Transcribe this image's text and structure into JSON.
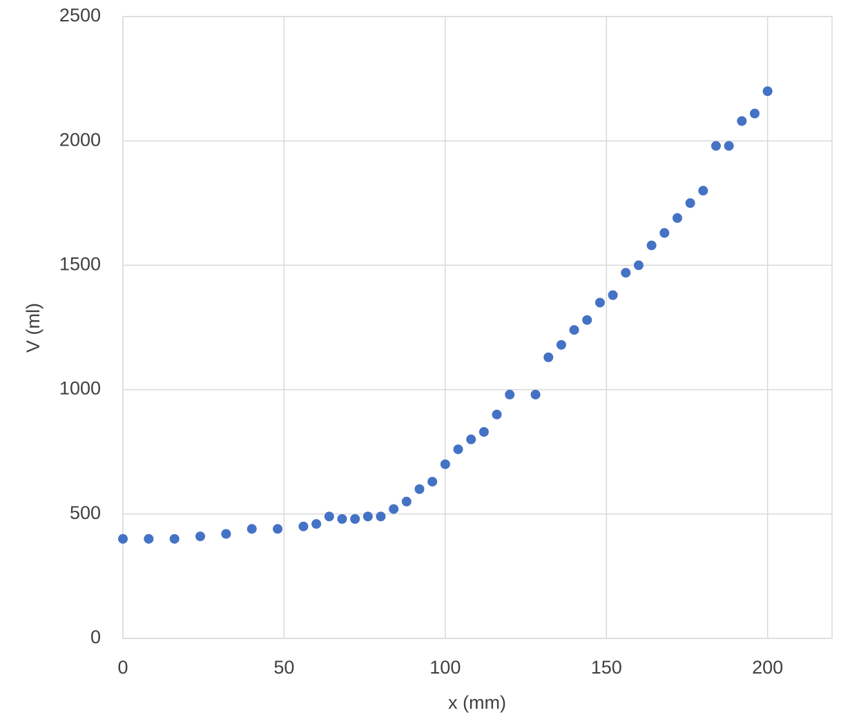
{
  "chart_data": {
    "type": "scatter",
    "x_label": "x (mm)",
    "y_label": "V (ml)",
    "series": [
      {
        "color": "#4472c4",
        "x": [
          0,
          8,
          16,
          24,
          32,
          40,
          48,
          56,
          60,
          64,
          68,
          72,
          76,
          80,
          84,
          88,
          92,
          96,
          100,
          104,
          108,
          112,
          116,
          120,
          128,
          132,
          136,
          140,
          144,
          148,
          152,
          156,
          160,
          164,
          168,
          172,
          176,
          180,
          184,
          188,
          192,
          196,
          200
        ],
        "values": [
          400,
          400,
          400,
          410,
          420,
          440,
          440,
          450,
          460,
          490,
          480,
          480,
          490,
          490,
          520,
          550,
          600,
          630,
          700,
          760,
          800,
          830,
          900,
          980,
          980,
          1130,
          1180,
          1240,
          1280,
          1350,
          1380,
          1470,
          1500,
          1580,
          1630,
          1690,
          1750,
          1800,
          1980,
          1980,
          2080,
          2110,
          2200
        ]
      }
    ],
    "xlim": [
      0,
      220
    ],
    "xticks": [
      0,
      50,
      100,
      150,
      200
    ],
    "ylim": [
      0,
      2500
    ],
    "yticks": [
      0,
      500,
      1000,
      1500,
      2000,
      2500
    ],
    "grid": true
  }
}
